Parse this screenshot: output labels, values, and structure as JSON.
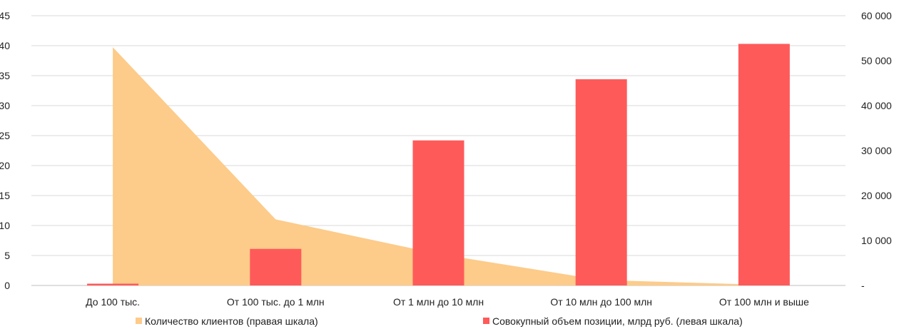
{
  "chart_data": {
    "type": "bar",
    "categories": [
      "До 100 тыс.",
      "От 100 тыс. до 1 млн",
      "От 1 млн до 10 млн",
      "От 10 млн до 100 млн",
      "От 100 млн и выше"
    ],
    "series": [
      {
        "name": "Количество клиентов (правая шкала)",
        "kind": "area",
        "axis": "right",
        "color": "#FDCB8A",
        "values": [
          53000,
          14700,
          7000,
          1200,
          150
        ]
      },
      {
        "name": "Совокупный объем позиции, млрд руб. (левая шкала)",
        "kind": "bar",
        "axis": "left",
        "color": "#FF5A5A",
        "values": [
          0.3,
          6.1,
          24.2,
          34.4,
          40.3
        ]
      }
    ],
    "left_axis": {
      "ylim": [
        0,
        45
      ],
      "ticks": [
        "0",
        "5",
        "10",
        "15",
        "20",
        "25",
        "30",
        "35",
        "40",
        "45"
      ]
    },
    "right_axis": {
      "ylim": [
        0,
        60000
      ],
      "ticks": [
        "-",
        "10 000",
        "20 000",
        "30 000",
        "40 000",
        "50 000",
        "60 000"
      ]
    },
    "grid": true,
    "legend_position": "bottom"
  }
}
